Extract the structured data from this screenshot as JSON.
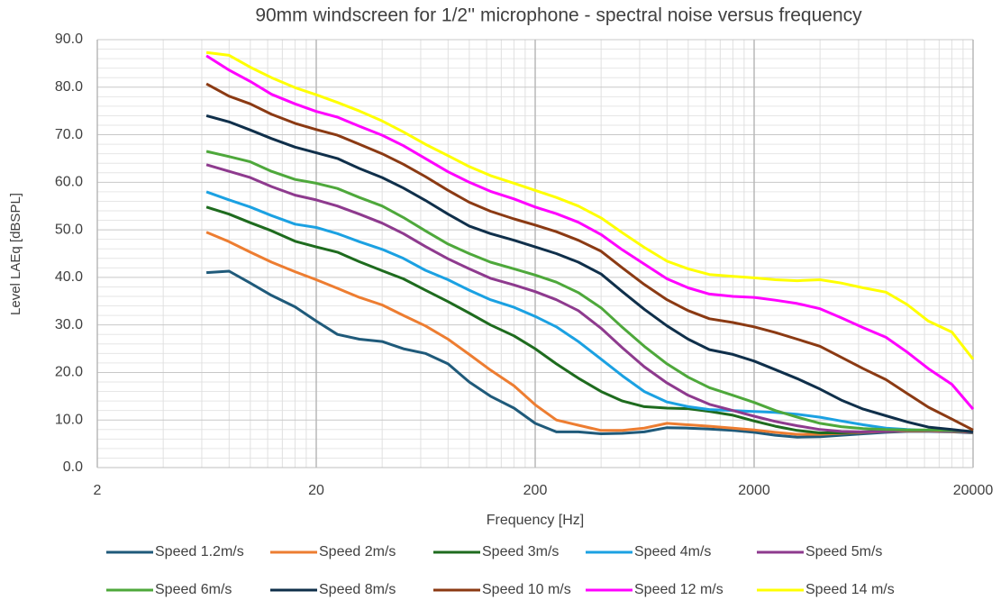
{
  "chart_data": {
    "type": "line",
    "title": "90mm windscreen for 1/2'' microphone - spectral noise versus frequency",
    "xlabel": "Frequency [Hz]",
    "ylabel": "Level LAEq [dBSPL]",
    "xscale": "log",
    "grid": true,
    "minor_grid": true,
    "legend": "bottom",
    "xlim": [
      2,
      20000
    ],
    "xticks": [
      2,
      20,
      200,
      2000,
      20000
    ],
    "ylim": [
      0,
      90
    ],
    "yticks": [
      {
        "value": 0,
        "label": "0.0"
      },
      {
        "value": 10,
        "label": "10.0"
      },
      {
        "value": 20,
        "label": "20.0"
      },
      {
        "value": 30,
        "label": "30.0"
      },
      {
        "value": 40,
        "label": "40.0"
      },
      {
        "value": 50,
        "label": "50.0"
      },
      {
        "value": 60,
        "label": "60.0"
      },
      {
        "value": 70,
        "label": "70.0"
      },
      {
        "value": 80,
        "label": "80.0"
      },
      {
        "value": 90,
        "label": "90.0"
      }
    ],
    "x": [
      6.3,
      8,
      10,
      12.5,
      16,
      20,
      25,
      31.5,
      40,
      50,
      63,
      80,
      100,
      125,
      160,
      200,
      250,
      315,
      400,
      500,
      630,
      800,
      1000,
      1250,
      1600,
      2000,
      2500,
      3150,
      4000,
      5000,
      6300,
      8000,
      10000,
      12500,
      16000,
      20000
    ],
    "series": [
      {
        "name": "Speed 1.2m/s",
        "color": "#1f5a7a",
        "values": [
          41,
          41.3,
          38.8,
          36.2,
          33.8,
          30.8,
          28,
          27,
          26.5,
          25,
          24,
          21.8,
          18,
          15,
          12.5,
          9.3,
          7.5,
          7.5,
          7.1,
          7.2,
          7.5,
          8.4,
          8.3,
          8.1,
          7.8,
          7.4,
          6.8,
          6.4,
          6.5,
          6.8,
          7.1,
          7.4,
          7.6,
          7.6,
          7.5,
          7.3
        ]
      },
      {
        "name": "Speed 2m/s",
        "color": "#ed7d31",
        "values": [
          49.5,
          47.5,
          45.3,
          43.2,
          41.2,
          39.5,
          37.7,
          35.8,
          34.2,
          32,
          29.8,
          27,
          23.8,
          20.5,
          17.2,
          13.2,
          10,
          8.9,
          7.8,
          7.8,
          8.3,
          9.3,
          9,
          8.7,
          8.3,
          7.9,
          7.4,
          7,
          7,
          7.2,
          7.4,
          7.6,
          7.7,
          7.7,
          7.6,
          7.4
        ]
      },
      {
        "name": "Speed 3m/s",
        "color": "#1e6b1e",
        "values": [
          54.8,
          53.3,
          51.5,
          49.8,
          47.6,
          46.4,
          45.3,
          43.3,
          41.4,
          39.7,
          37.3,
          34.9,
          32.5,
          30,
          27.7,
          25,
          21.8,
          18.8,
          16,
          14,
          12.8,
          12.5,
          12.4,
          11.8,
          11,
          9.8,
          8.7,
          7.8,
          7.3,
          7.3,
          7.5,
          7.7,
          7.8,
          7.8,
          7.7,
          7.5
        ]
      },
      {
        "name": "Speed 4m/s",
        "color": "#1ba1e2",
        "values": [
          58,
          56.3,
          54.8,
          53,
          51.2,
          50.5,
          49.2,
          47.5,
          45.9,
          44,
          41.5,
          39.5,
          37.3,
          35.3,
          33.7,
          31.8,
          29.6,
          26.5,
          22.8,
          19.3,
          16,
          13.8,
          12.8,
          12.2,
          12,
          11.8,
          11.6,
          11.2,
          10.6,
          9.8,
          9,
          8.3,
          8,
          7.8,
          7.7,
          7.5
        ]
      },
      {
        "name": "Speed 5m/s",
        "color": "#8e3a8e",
        "values": [
          63.7,
          62.3,
          61,
          59.1,
          57.3,
          56.3,
          55,
          53.3,
          51.4,
          49.2,
          46.5,
          43.9,
          41.8,
          39.8,
          38.4,
          37,
          35.3,
          33,
          29.3,
          25.2,
          21.2,
          17.8,
          15.2,
          13.3,
          12,
          10.8,
          9.7,
          8.8,
          8,
          7.6,
          7.5,
          7.6,
          7.8,
          7.8,
          7.7,
          7.5
        ]
      },
      {
        "name": "Speed 6m/s",
        "color": "#4ea83b",
        "values": [
          66.5,
          65.4,
          64.3,
          62.3,
          60.6,
          59.8,
          58.7,
          56.8,
          55,
          52.6,
          49.8,
          47,
          45,
          43.2,
          41.8,
          40.5,
          39,
          36.8,
          33.6,
          29.5,
          25.5,
          21.8,
          19,
          16.8,
          15.2,
          13.7,
          12,
          10.6,
          9.3,
          8.6,
          8.2,
          8,
          7.9,
          7.9,
          7.8,
          7.6
        ]
      },
      {
        "name": "Speed 8m/s",
        "color": "#0f2f4a",
        "values": [
          74,
          72.7,
          71,
          69.2,
          67.4,
          66.2,
          65,
          62.9,
          61,
          58.8,
          56.2,
          53.3,
          50.8,
          49.2,
          47.8,
          46.4,
          45,
          43.2,
          40.7,
          37,
          33.3,
          29.8,
          27,
          24.8,
          23.8,
          22.4,
          20.6,
          18.7,
          16.5,
          14.2,
          12.3,
          10.9,
          9.6,
          8.5,
          8,
          7.5
        ]
      },
      {
        "name": "Speed 10 m/s",
        "color": "#8b3a13",
        "values": [
          80.7,
          78.1,
          76.5,
          74.3,
          72.4,
          71.1,
          69.9,
          68,
          66,
          63.8,
          61.2,
          58.3,
          55.8,
          53.9,
          52.3,
          51,
          49.6,
          47.8,
          45.5,
          42,
          38.5,
          35.3,
          33,
          31.3,
          30.5,
          29.6,
          28.4,
          27,
          25.5,
          23.2,
          20.8,
          18.5,
          15.6,
          12.7,
          10.2,
          7.9
        ]
      },
      {
        "name": "Speed 12 m/s",
        "color": "#ff00ff",
        "values": [
          86.6,
          83.6,
          81.2,
          78.5,
          76.5,
          74.9,
          73.7,
          71.8,
          69.9,
          67.7,
          65,
          62.2,
          60,
          58.1,
          56.5,
          54.8,
          53.4,
          51.6,
          49,
          45.8,
          42.8,
          39.7,
          37.8,
          36.5,
          36,
          35.8,
          35.2,
          34.5,
          33.4,
          31.5,
          29.4,
          27.4,
          24.3,
          20.8,
          17.5,
          12.3
        ]
      },
      {
        "name": "Speed 14 m/s",
        "color": "#ffff00",
        "values": [
          87.3,
          86.7,
          84.2,
          82,
          79.9,
          78.4,
          76.8,
          75,
          72.9,
          70.6,
          68,
          65.6,
          63.3,
          61.4,
          59.8,
          58.3,
          56.8,
          55,
          52.5,
          49.4,
          46.3,
          43.4,
          41.8,
          40.6,
          40.2,
          39.9,
          39.5,
          39.3,
          39.5,
          38.8,
          37.8,
          36.9,
          34.3,
          30.8,
          28.5,
          22.8
        ]
      }
    ]
  }
}
